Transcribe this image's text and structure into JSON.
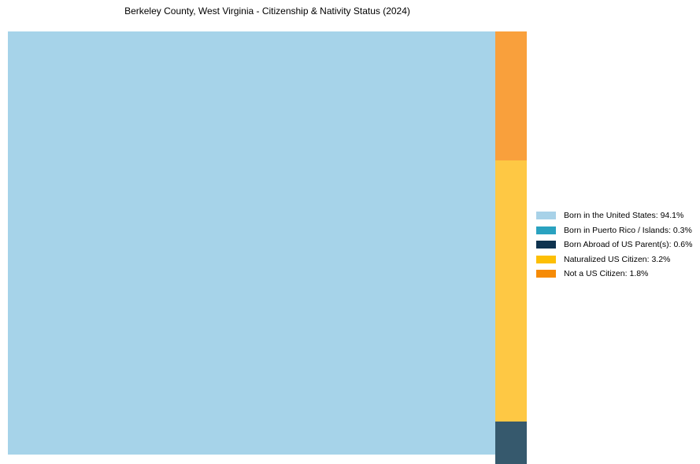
{
  "chart_data": {
    "type": "treemap",
    "title": "Berkeley County, West Virginia - Citizenship & Nativity Status (2024)",
    "unit": "%",
    "total": 100,
    "legend_position": "right",
    "items": [
      {
        "label": "Born in the United States",
        "value": 94.1,
        "legend_text": "Born in the United States: 94.1%",
        "chart_color": "#a6d3e9",
        "legend_color": "#a8d2e8"
      },
      {
        "label": "Born in Puerto Rico / Islands",
        "value": 0.3,
        "legend_text": "Born in Puerto Rico / Islands: 0.3%",
        "chart_color": "#4db3c7",
        "legend_color": "#2aa2c0"
      },
      {
        "label": "Born Abroad of US Parent(s)",
        "value": 0.6,
        "legend_text": "Born Abroad of US Parent(s): 0.6%",
        "chart_color": "#36596d",
        "legend_color": "#0e334f"
      },
      {
        "label": "Naturalized US Citizen",
        "value": 3.2,
        "legend_text": "Naturalized US Citizen: 3.2%",
        "chart_color": "#fec844",
        "legend_color": "#fdbf05"
      },
      {
        "label": "Not a US Citizen",
        "value": 1.8,
        "legend_text": "Not a US Citizen: 1.8%",
        "chart_color": "#f9a03c",
        "legend_color": "#f68b06"
      }
    ]
  }
}
